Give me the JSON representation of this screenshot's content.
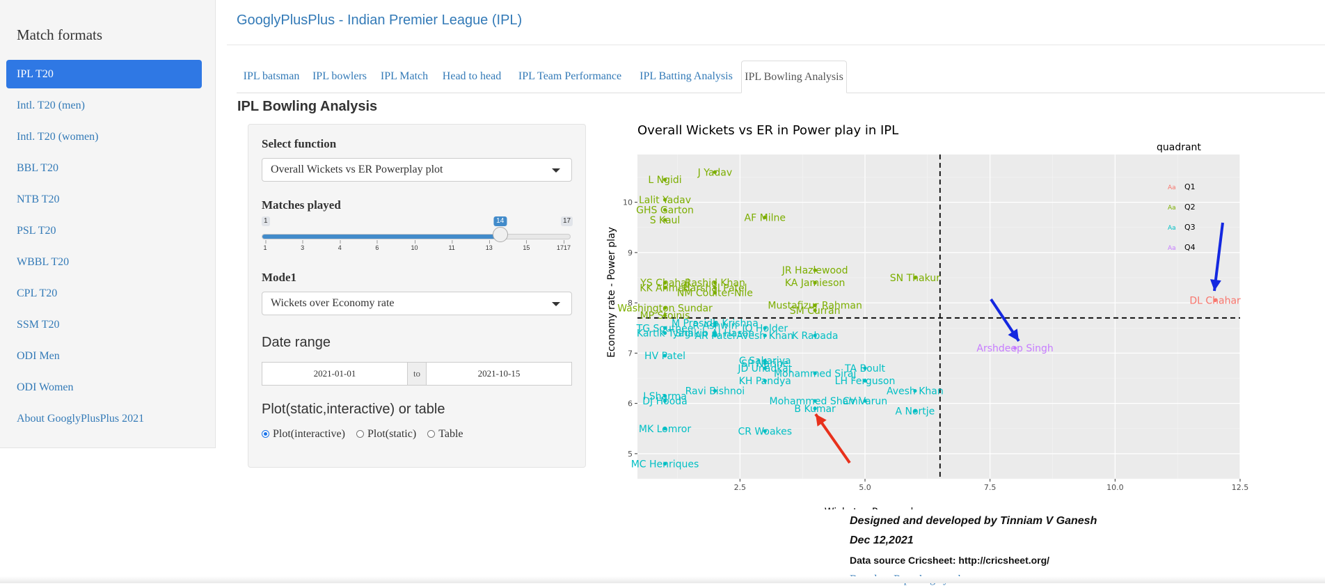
{
  "sidebar": {
    "title": "Match formats",
    "items": [
      "IPL T20",
      "Intl. T20 (men)",
      "Intl. T20 (women)",
      "BBL T20",
      "NTB T20",
      "PSL T20",
      "WBBL T20",
      "CPL T20",
      "SSM T20",
      "ODI Men",
      "ODI Women",
      "About GooglyPlusPlus 2021"
    ],
    "active_index": 0
  },
  "header": {
    "brand": "GooglyPlusPlus - Indian Premier League (IPL)"
  },
  "tabs": {
    "items": [
      "IPL batsman",
      "IPL bowlers",
      "IPL Match",
      "Head to head",
      "IPL Team Performance",
      "IPL Batting Analysis",
      "IPL Bowling Analysis"
    ],
    "active_index": 6
  },
  "page_title": "IPL Bowling Analysis",
  "controls": {
    "function_label": "Select function",
    "function_value": "Overall Wickets vs ER Powerplay plot",
    "matches_label": "Matches played",
    "slider": {
      "min": "1",
      "max": "17",
      "value": "14",
      "value_num": 14,
      "min_num": 1,
      "max_num": 17,
      "ticks": [
        "1",
        "3",
        "4",
        "6",
        "10",
        "11",
        "13",
        "15",
        "1717"
      ]
    },
    "mode_label": "Mode1",
    "mode_value": "Wickets over Economy rate",
    "date_label": "Date range",
    "date_from": "2021-01-01",
    "date_sep": "to",
    "date_to": "2021-10-15",
    "plot_label": "Plot(static,interactive) or table",
    "plot_options": [
      "Plot(interactive)",
      "Plot(static)",
      "Table"
    ],
    "plot_selected": 0
  },
  "chart_data": {
    "type": "scatter",
    "title": "Overall Wickets vs ER in Power play in IPL",
    "xlabel": "Wickets - Power play",
    "ylabel": "Economy rate - Power play",
    "xlim": [
      0.45,
      12.5
    ],
    "ylim": [
      4.5,
      10.95
    ],
    "xticks": [
      "2.5",
      "5.0",
      "7.5",
      "10.0",
      "12.5"
    ],
    "yticks": [
      "5",
      "6",
      "7",
      "8",
      "9",
      "10"
    ],
    "vline": 6.5,
    "hline": 7.7,
    "grid": true,
    "legend": {
      "title": "quadrant",
      "position": "right",
      "entries": [
        "Q1",
        "Q2",
        "Q3",
        "Q4"
      ],
      "glyph": "Aa"
    },
    "colors": {
      "Q1": "#F8766D",
      "Q2": "#7CAE00",
      "Q3": "#00BFC4",
      "Q4": "#C77CFF"
    },
    "points": [
      {
        "label": "J Yadav",
        "x": 2.0,
        "y": 10.6,
        "q": "Q2"
      },
      {
        "label": "L Ngidi",
        "x": 1.0,
        "y": 10.45,
        "q": "Q2"
      },
      {
        "label": "Lalit Yadav",
        "x": 1.0,
        "y": 10.05,
        "q": "Q2"
      },
      {
        "label": "GHS Garton",
        "x": 1.0,
        "y": 9.85,
        "q": "Q2"
      },
      {
        "label": "S Kaul",
        "x": 1.0,
        "y": 9.65,
        "q": "Q2"
      },
      {
        "label": "AF Milne",
        "x": 3.0,
        "y": 9.7,
        "q": "Q2"
      },
      {
        "label": "JR Hazlewood",
        "x": 4.0,
        "y": 8.65,
        "q": "Q2"
      },
      {
        "label": "KA Jamieson",
        "x": 4.0,
        "y": 8.4,
        "q": "Q2"
      },
      {
        "label": "SN Thakur",
        "x": 6.0,
        "y": 8.5,
        "q": "Q2"
      },
      {
        "label": "YS Chahal",
        "x": 1.0,
        "y": 8.4,
        "q": "Q2"
      },
      {
        "label": "Rashid Khan",
        "x": 2.0,
        "y": 8.4,
        "q": "Q2"
      },
      {
        "label": "KK Ahmed",
        "x": 1.0,
        "y": 8.3,
        "q": "Q2"
      },
      {
        "label": "Harshal Patel",
        "x": 2.0,
        "y": 8.3,
        "q": "Q2"
      },
      {
        "label": "NM Coulter-Nile",
        "x": 2.0,
        "y": 8.2,
        "q": "Q2"
      },
      {
        "label": "Mustafizur Rahman",
        "x": 4.0,
        "y": 7.95,
        "q": "Q2"
      },
      {
        "label": "SM Curran",
        "x": 4.0,
        "y": 7.85,
        "q": "Q2"
      },
      {
        "label": "Washington Sundar",
        "x": 1.0,
        "y": 7.9,
        "q": "Q2"
      },
      {
        "label": "MP Stoinis",
        "x": 1.0,
        "y": 7.75,
        "q": "Q2"
      },
      {
        "label": "DL Chahar",
        "x": 12.0,
        "y": 8.05,
        "q": "Q1"
      },
      {
        "label": "Arshdeep Singh",
        "x": 8.0,
        "y": 7.1,
        "q": "Q4"
      },
      {
        "label": "M Prasidh Krishna",
        "x": 2.0,
        "y": 7.6,
        "q": "Q3"
      },
      {
        "label": "R Ashwin",
        "x": 2.0,
        "y": 7.55,
        "q": "Q3"
      },
      {
        "label": "TG Southee",
        "x": 1.0,
        "y": 7.5,
        "q": "Q3"
      },
      {
        "label": "JO Holder",
        "x": 3.0,
        "y": 7.5,
        "q": "Q3"
      },
      {
        "label": "Kartik Tyagi",
        "x": 1.0,
        "y": 7.4,
        "q": "Q3"
      },
      {
        "label": "Shakib Al Hasan",
        "x": 2.0,
        "y": 7.4,
        "q": "Q3"
      },
      {
        "label": "AR Patel",
        "x": 2.0,
        "y": 7.35,
        "q": "Q3"
      },
      {
        "label": "Avesh Khan",
        "x": 3.0,
        "y": 7.35,
        "q": "Q3"
      },
      {
        "label": "K Rabada",
        "x": 4.0,
        "y": 7.35,
        "q": "Q3"
      },
      {
        "label": "HV Patel",
        "x": 1.0,
        "y": 6.95,
        "q": "Q3"
      },
      {
        "label": "C Sakariya",
        "x": 3.0,
        "y": 6.85,
        "q": "Q3"
      },
      {
        "label": "SP Narine",
        "x": 3.0,
        "y": 6.8,
        "q": "Q3"
      },
      {
        "label": "JD Unadkat",
        "x": 3.0,
        "y": 6.7,
        "q": "Q3"
      },
      {
        "label": "Mohammed Siraj",
        "x": 4.0,
        "y": 6.6,
        "q": "Q3"
      },
      {
        "label": "TA Boult",
        "x": 5.0,
        "y": 6.7,
        "q": "Q3"
      },
      {
        "label": "KH Pandya",
        "x": 3.0,
        "y": 6.45,
        "q": "Q3"
      },
      {
        "label": "LH Ferguson",
        "x": 5.0,
        "y": 6.45,
        "q": "Q3"
      },
      {
        "label": "Ravi Bishnoi",
        "x": 2.0,
        "y": 6.25,
        "q": "Q3"
      },
      {
        "label": "Avesh Khan",
        "x": 6.0,
        "y": 6.25,
        "q": "Q3"
      },
      {
        "label": "I Sharma",
        "x": 1.0,
        "y": 6.15,
        "q": "Q3"
      },
      {
        "label": "DJ Hooda",
        "x": 1.0,
        "y": 6.05,
        "q": "Q3"
      },
      {
        "label": "Mohammed Shami",
        "x": 4.0,
        "y": 6.05,
        "q": "Q3"
      },
      {
        "label": "CV Varun",
        "x": 5.0,
        "y": 6.05,
        "q": "Q3"
      },
      {
        "label": "B Kumar",
        "x": 4.0,
        "y": 5.9,
        "q": "Q3"
      },
      {
        "label": "A Nortje",
        "x": 6.0,
        "y": 5.85,
        "q": "Q3"
      },
      {
        "label": "MK Lomror",
        "x": 1.0,
        "y": 5.5,
        "q": "Q3"
      },
      {
        "label": "CR Woakes",
        "x": 3.0,
        "y": 5.45,
        "q": "Q3"
      },
      {
        "label": "MC Henriques",
        "x": 1.0,
        "y": 4.8,
        "q": "Q3"
      }
    ],
    "annotation_colors": {
      "red_arrow": "#e8311c",
      "blue_arrow": "#1428e0"
    }
  },
  "credits": {
    "line1": "Designed and developed by Tinniam V Ganesh",
    "line2": "Dec 12,2021",
    "line3": "Data source Cricsheet: http://cricsheet.org/",
    "line4": "Based on R package yorkr"
  }
}
